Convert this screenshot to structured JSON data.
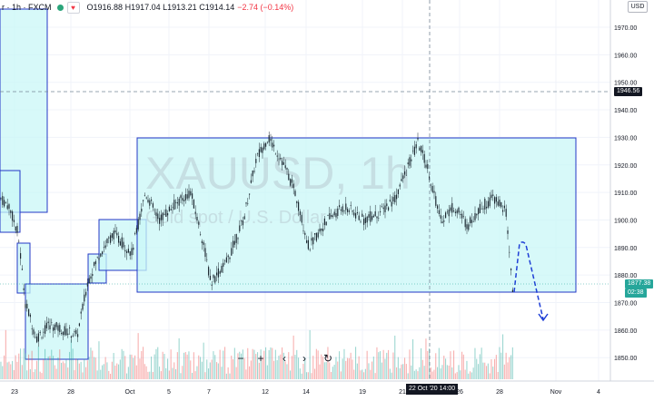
{
  "header": {
    "symbol": "r · 1h · FXCM",
    "open": "O1916.88",
    "high": "H1917.04",
    "low": "L1913.21",
    "close": "C1914.14",
    "change": "−2.74 (−0.14%)"
  },
  "currency": "USD",
  "watermark": {
    "symbol": "XAUUSD, 1h",
    "sub": "Gold spot / U.S. Dollar"
  },
  "y_axis": {
    "ticks": [
      1970.0,
      1960.0,
      1950.0,
      1940.0,
      1930.0,
      1920.0,
      1910.0,
      1900.0,
      1890.0,
      1880.0,
      1870.0,
      1860.0,
      1850.0
    ],
    "tick_labels": [
      "1970.00",
      "1960.00",
      "1950.00",
      "1940.00",
      "1930.00",
      "1920.00",
      "1910.00",
      "1900.00",
      "1890.00",
      "1880.00",
      "1870.00",
      "1860.00",
      "1850.00"
    ]
  },
  "crosshair_price": "1946.56",
  "last_price": "1877.38",
  "countdown": "02:38",
  "x_axis": {
    "labels": [
      "23",
      "28",
      "Oct",
      "5",
      "7",
      "12",
      "14",
      "19",
      "21",
      "26",
      "28",
      "Nov",
      "4"
    ]
  },
  "crosshair_time": "22 Oct '20   14:00",
  "toolbar": {
    "zoom_out": "−",
    "zoom_in": "+",
    "scroll_left": "‹",
    "scroll_right": "›",
    "reset": "↻"
  },
  "colors": {
    "up": "#26a69a",
    "down": "#ef5350",
    "box_fill": "#c9f7f7",
    "box_border": "#2337c6",
    "price_tag": "#26a69a",
    "crosshair_tag": "#131722"
  }
}
